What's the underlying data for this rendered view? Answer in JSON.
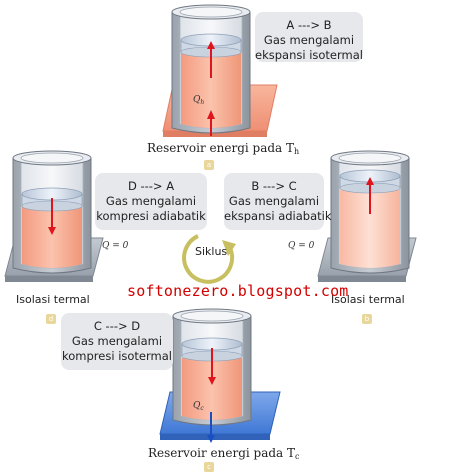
{
  "steps": {
    "a": {
      "title": "A ---> B",
      "line1": "Gas mengalami",
      "line2": "ekspansi isotermal",
      "caption": "Reservoir energi pada T",
      "caption_sub": "h",
      "heat_label": "Q",
      "heat_sub": "h",
      "tag": "a"
    },
    "b": {
      "title": "B ---> C",
      "line1": "Gas mengalami",
      "line2": "ekspansi adiabatik",
      "caption": "Isolasi termal",
      "q_label": "Q = 0",
      "tag": "b"
    },
    "c": {
      "title": "C ---> D",
      "line1": "Gas mengalami",
      "line2": "kompresi isotermal",
      "caption": "Reservoir energi pada T",
      "caption_sub": "c",
      "heat_label": "Q",
      "heat_sub": "c",
      "tag": "c"
    },
    "d": {
      "title": "D ---> A",
      "line1": "Gas mengalami",
      "line2": "kompresi adiabatik",
      "caption": "Isolasi termal",
      "q_label": "Q = 0",
      "tag": "d"
    }
  },
  "center": {
    "cycle_label": "Siklus",
    "watermark": "softonezero.blogspot.com"
  },
  "colors": {
    "hot_reservoir": "#f6a88a",
    "cold_reservoir": "#5b8fe0",
    "gas": "#f7b39a",
    "arrow": "#e0141c",
    "arrow_cold": "#1a4fc4",
    "cycle_arrow": "#c8c060",
    "note_bg": "#e6e8ec"
  }
}
